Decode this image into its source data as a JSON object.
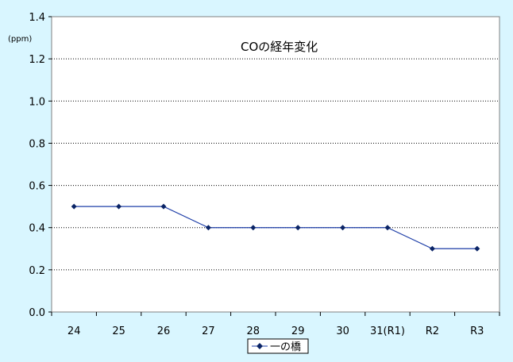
{
  "chart_data": {
    "type": "line",
    "title": "COの経年変化",
    "unit_label": "(ppm)",
    "categories": [
      "24",
      "25",
      "26",
      "27",
      "28",
      "29",
      "30",
      "31(R1)",
      "R2",
      "R3"
    ],
    "series": [
      {
        "name": "一の橋",
        "values": [
          0.5,
          0.5,
          0.5,
          0.4,
          0.4,
          0.4,
          0.4,
          0.4,
          0.3,
          0.3
        ],
        "color": "#1f3fa8",
        "marker_color": "#0a2466"
      }
    ],
    "ylim": [
      0.0,
      1.4
    ],
    "yticks": [
      "0.0",
      "0.2",
      "0.4",
      "0.6",
      "0.8",
      "1.0",
      "1.2",
      "1.4"
    ],
    "grid": "dotted horizontal",
    "legend_position": "bottom-center",
    "colors": {
      "background": "#d9f6ff",
      "plot_area": "#ffffff",
      "gridline": "#000000"
    }
  }
}
